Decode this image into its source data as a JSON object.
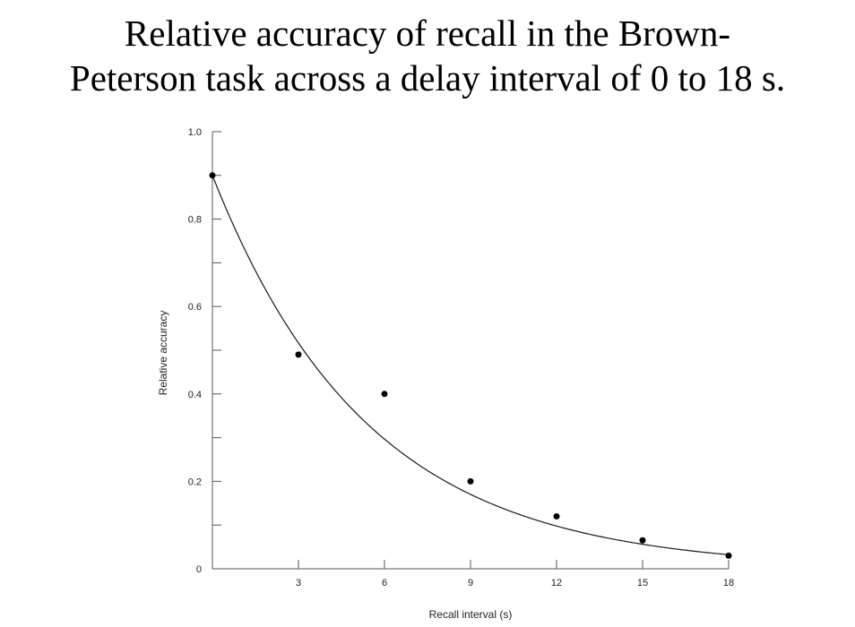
{
  "chart_data": {
    "type": "scatter",
    "title_lines": [
      "Relative accuracy of recall in the Brown-",
      "Peterson task across a delay interval of 0 to 18 s."
    ],
    "xlabel": "Recall interval (s)",
    "ylabel": "Relative accuracy",
    "xlim": [
      0,
      18
    ],
    "ylim": [
      0,
      1.0
    ],
    "x_ticks": [
      3,
      6,
      9,
      12,
      15,
      18
    ],
    "x_tick_labels": [
      "3",
      "6",
      "9",
      "12",
      "15",
      "18"
    ],
    "y_ticks": [
      0,
      0.2,
      0.4,
      0.6,
      0.8,
      1.0
    ],
    "y_tick_labels": [
      "0",
      "0.2",
      "0.4",
      "0.6",
      "0.8",
      "1.0"
    ],
    "y_minor_ticks": [
      0.1,
      0.3,
      0.5,
      0.7,
      0.9
    ],
    "points": [
      {
        "x": 0,
        "y": 0.9
      },
      {
        "x": 3,
        "y": 0.49
      },
      {
        "x": 6,
        "y": 0.4
      },
      {
        "x": 9,
        "y": 0.2
      },
      {
        "x": 12,
        "y": 0.12
      },
      {
        "x": 15,
        "y": 0.065
      },
      {
        "x": 18,
        "y": 0.03
      }
    ],
    "fit_curve": {
      "kind": "exponential_decay",
      "a": 0.9,
      "k": 0.185
    },
    "grid": false,
    "legend": "none",
    "colors": {
      "points": "#000000",
      "curve": "#1a1a1a",
      "axes": "#555555"
    }
  }
}
